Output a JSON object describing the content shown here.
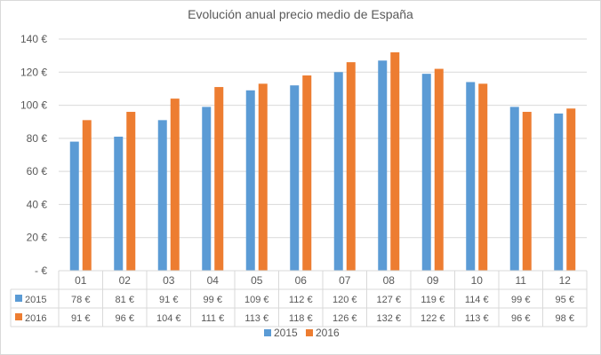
{
  "chart_data": {
    "type": "bar",
    "title": "Evolución anual precio medio de España",
    "categories": [
      "01",
      "02",
      "03",
      "04",
      "05",
      "06",
      "07",
      "08",
      "09",
      "10",
      "11",
      "12"
    ],
    "series": [
      {
        "name": "2015",
        "color": "#5b9bd5",
        "values": [
          78,
          81,
          91,
          99,
          109,
          112,
          120,
          127,
          119,
          114,
          99,
          95
        ],
        "labels": [
          "78 €",
          "81 €",
          "91 €",
          "99 €",
          "109 €",
          "112 €",
          "120 €",
          "127 €",
          "119 €",
          "114 €",
          "99 €",
          "95 €"
        ]
      },
      {
        "name": "2016",
        "color": "#ed7d31",
        "values": [
          91,
          96,
          104,
          111,
          113,
          118,
          126,
          132,
          122,
          113,
          96,
          98
        ],
        "labels": [
          "91 €",
          "96 €",
          "104 €",
          "111 €",
          "113 €",
          "118 €",
          "126 €",
          "132 €",
          "122 €",
          "113 €",
          "96 €",
          "98 €"
        ]
      }
    ],
    "ylim": [
      0,
      140
    ],
    "yticks": [
      {
        "value": 0,
        "label": "- €"
      },
      {
        "value": 20,
        "label": "20 €"
      },
      {
        "value": 40,
        "label": "40 €"
      },
      {
        "value": 60,
        "label": "60 €"
      },
      {
        "value": 80,
        "label": "80 €"
      },
      {
        "value": 100,
        "label": "100 €"
      },
      {
        "value": 120,
        "label": "120 €"
      },
      {
        "value": 140,
        "label": "140 €"
      }
    ],
    "grid": true,
    "data_table": true,
    "legend_position": "bottom"
  }
}
